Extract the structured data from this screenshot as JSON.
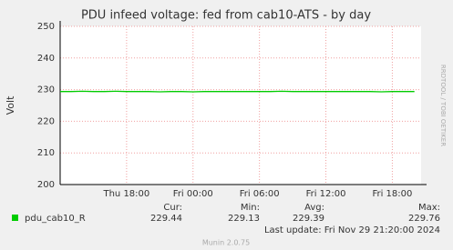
{
  "chart_data": {
    "type": "line",
    "title": "PDU infeed voltage: fed from cab10-ATS - by day",
    "y_label": "Volt",
    "watermark": "RRDTOOL / TOBI OETIKER",
    "x": [
      12,
      13,
      14,
      15,
      16,
      17,
      18,
      19,
      20,
      21,
      22,
      23,
      24,
      25,
      26,
      27,
      28,
      29,
      30,
      31,
      32,
      33,
      34,
      35,
      36,
      37,
      38,
      39,
      40,
      41,
      42,
      43,
      44
    ],
    "series": [
      {
        "name": "pdu_cab10_R",
        "color": "#00cc00",
        "values": [
          229.4,
          229.4,
          229.5,
          229.4,
          229.4,
          229.5,
          229.4,
          229.4,
          229.4,
          229.3,
          229.4,
          229.4,
          229.3,
          229.4,
          229.4,
          229.4,
          229.4,
          229.4,
          229.4,
          229.4,
          229.5,
          229.4,
          229.4,
          229.4,
          229.4,
          229.4,
          229.4,
          229.4,
          229.4,
          229.3,
          229.4,
          229.4,
          229.4
        ]
      }
    ],
    "xlim": [
      12,
      44.6
    ],
    "xticks": [
      {
        "value": 18,
        "label": "Thu 18:00"
      },
      {
        "value": 24,
        "label": "Fri 00:00"
      },
      {
        "value": 30,
        "label": "Fri 06:00"
      },
      {
        "value": 36,
        "label": "Fri 12:00"
      },
      {
        "value": 42,
        "label": "Fri 18:00"
      }
    ],
    "ylim": [
      200,
      250
    ],
    "yticks": [
      200,
      210,
      220,
      230,
      240,
      250
    ],
    "grid": true,
    "stats": {
      "labels": [
        "Cur:",
        "Min:",
        "Avg:",
        "Max:"
      ],
      "values": [
        229.44,
        229.13,
        229.39,
        229.76
      ]
    },
    "last_update": "Last update: Fri Nov 29 21:20:00 2024",
    "footer": "Munin 2.0.75"
  }
}
